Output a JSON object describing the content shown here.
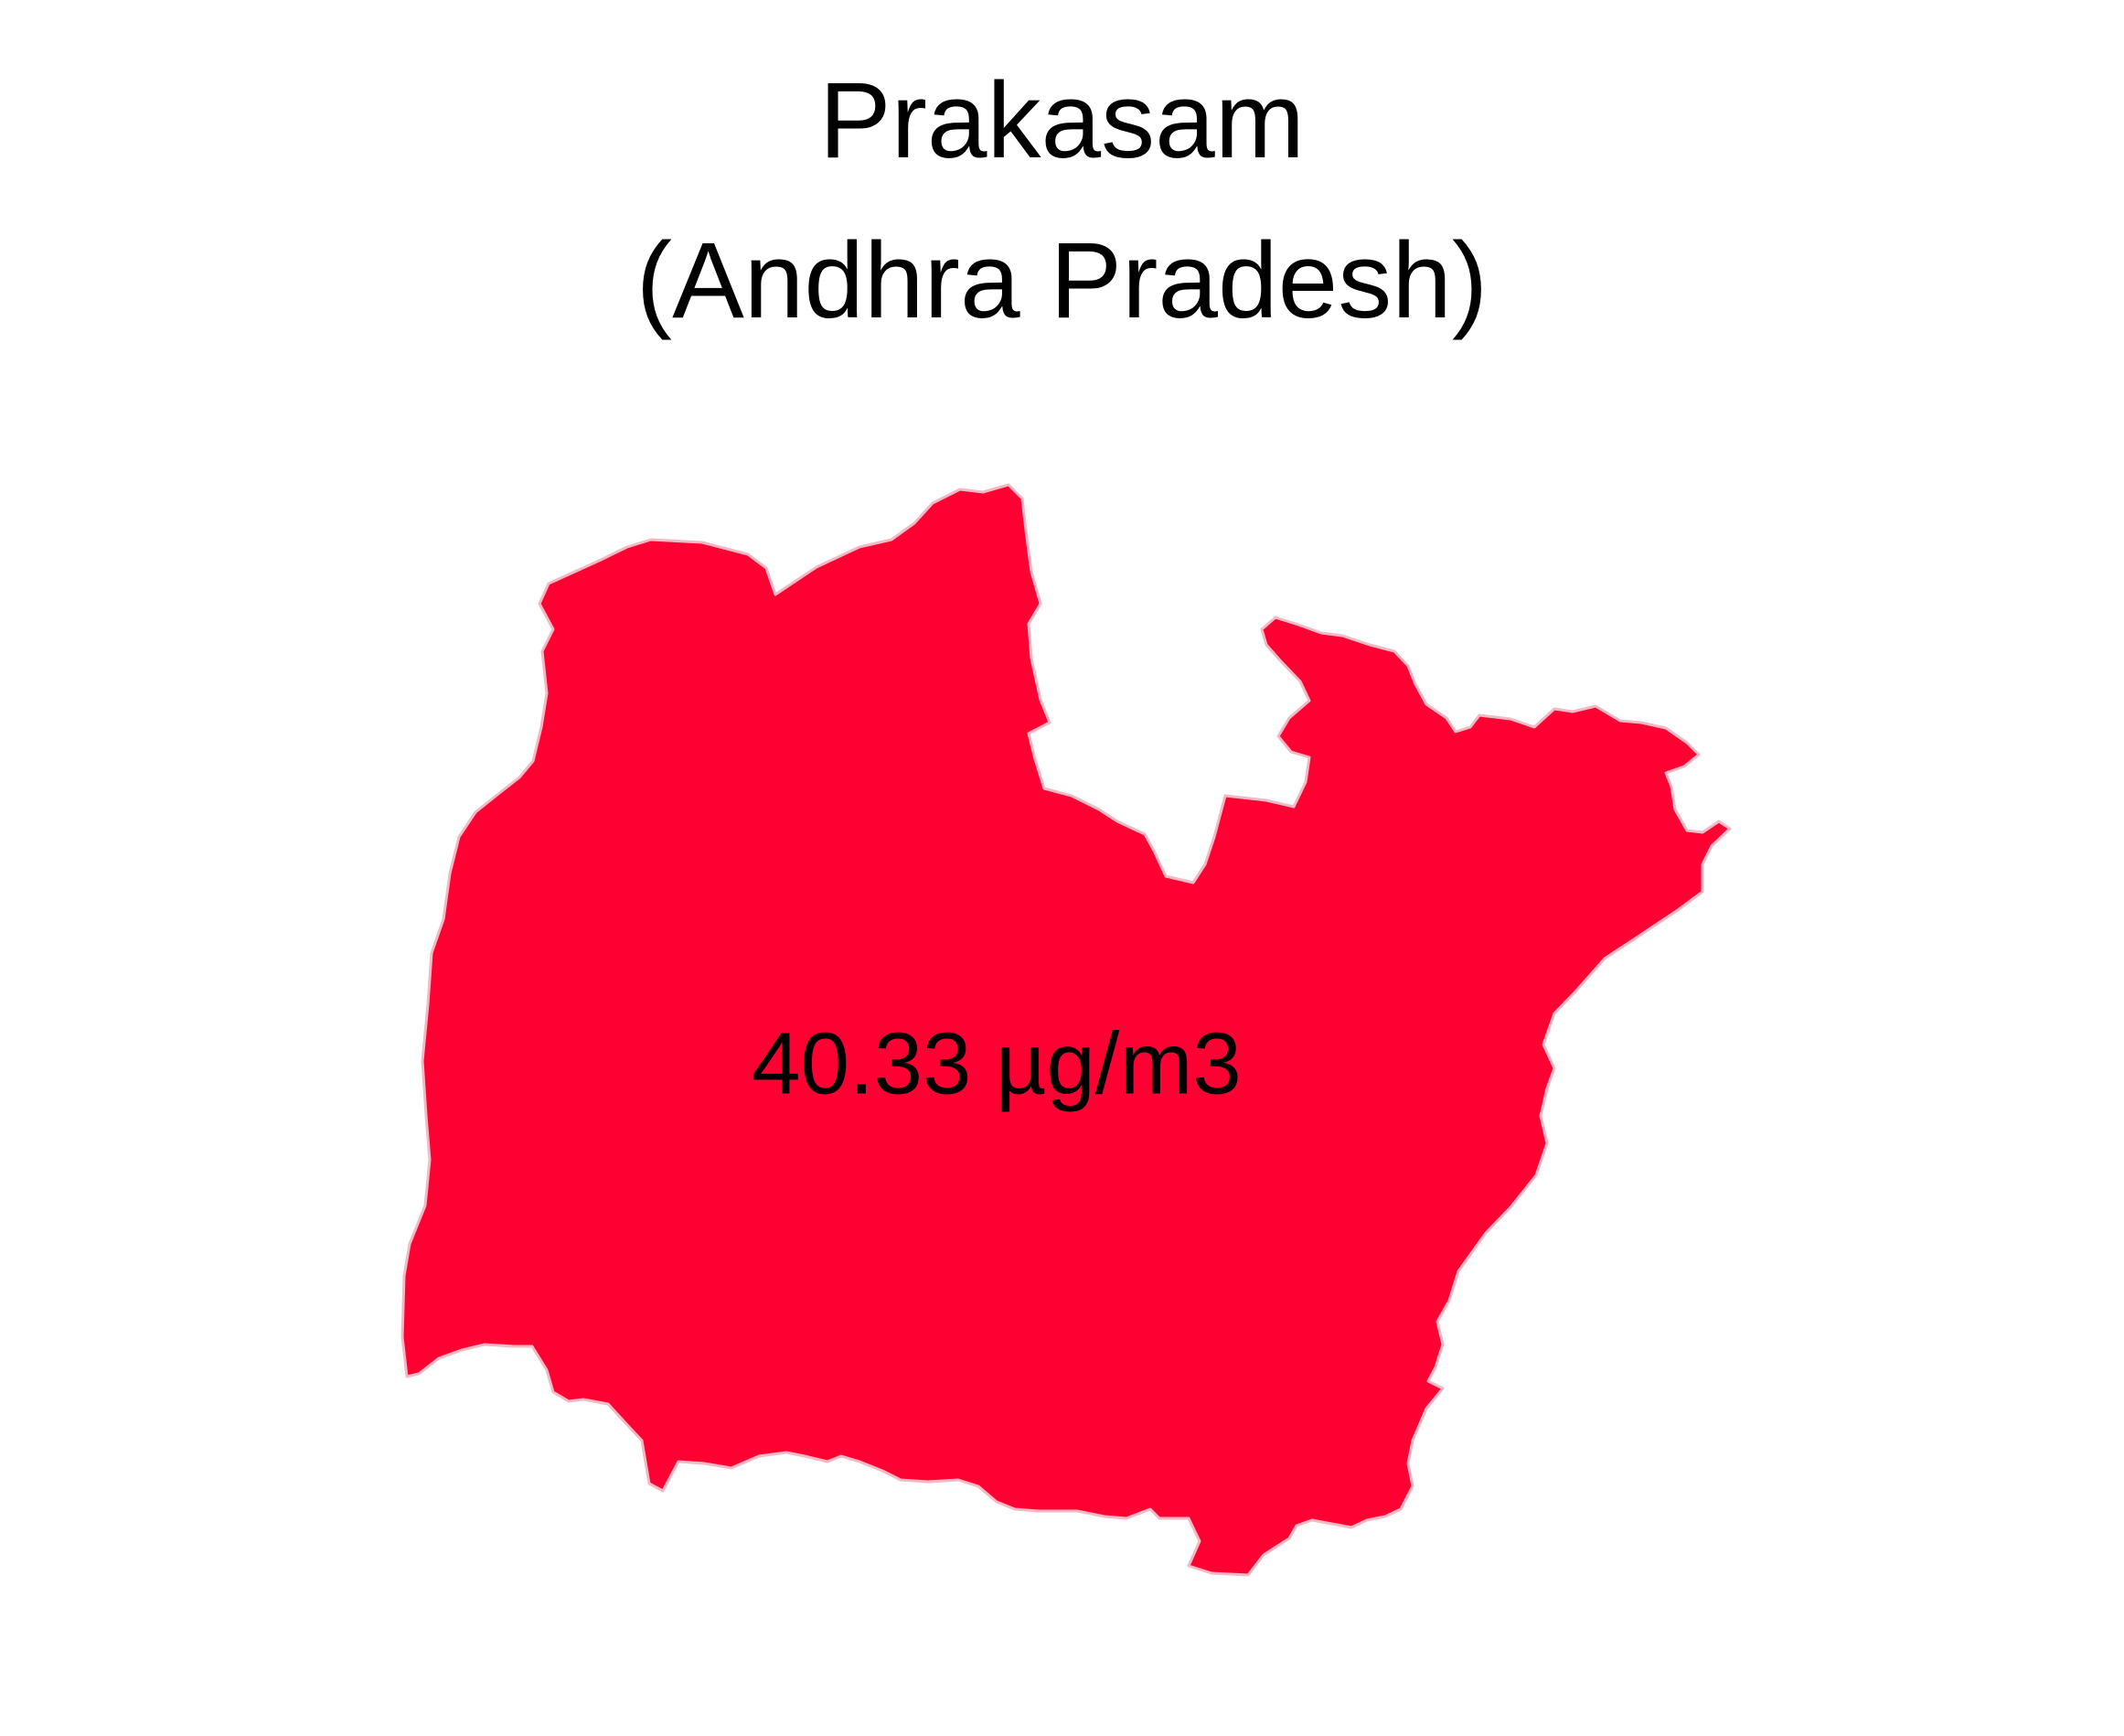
{
  "map": {
    "title_line_1": "Prakasam",
    "title_line_2": "(Andhra Pradesh)",
    "value_label": "40.33 µg/m3",
    "fill_color": "#ff0033",
    "border_color": "#f4b8c4",
    "background_color": "#ffffff"
  }
}
